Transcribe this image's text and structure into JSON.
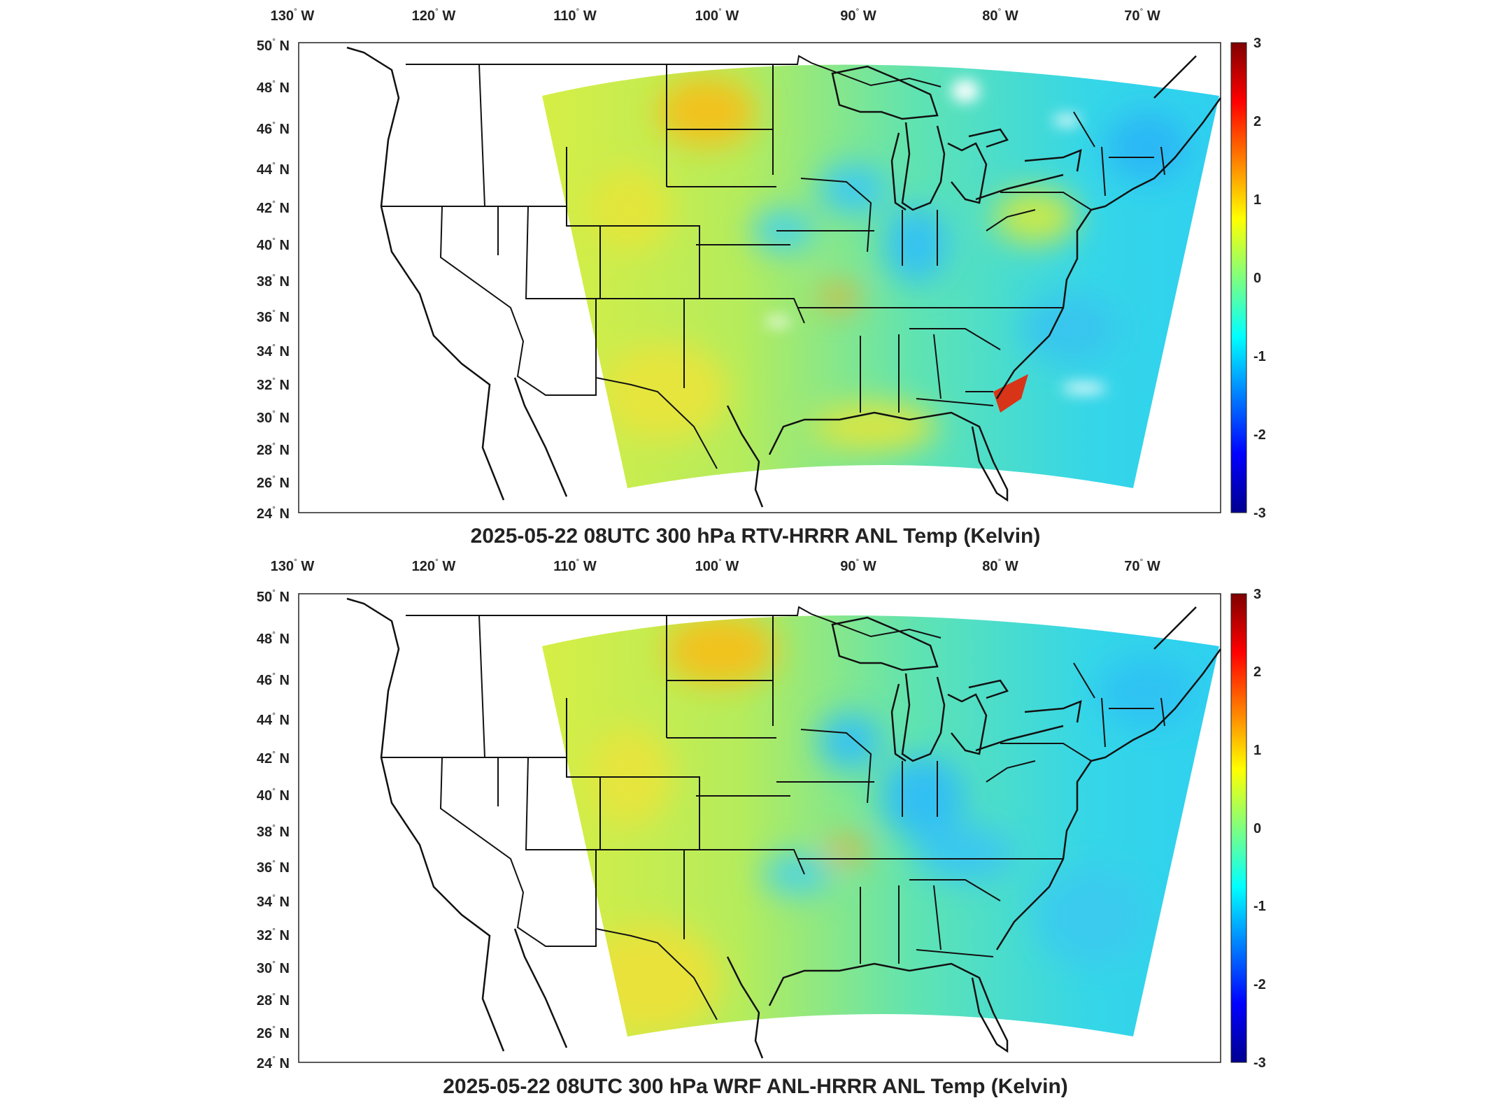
{
  "chart_data": [
    {
      "type": "heatmap",
      "title": "2025-05-22 08UTC 300 hPa RTV-HRRR ANL Temp (Kelvin)",
      "x_ticks": [
        {
          "deg": "130",
          "hemi": "W"
        },
        {
          "deg": "120",
          "hemi": "W"
        },
        {
          "deg": "110",
          "hemi": "W"
        },
        {
          "deg": "100",
          "hemi": "W"
        },
        {
          "deg": "90",
          "hemi": "W"
        },
        {
          "deg": "80",
          "hemi": "W"
        },
        {
          "deg": "70",
          "hemi": "W"
        }
      ],
      "y_ticks": [
        {
          "deg": "50",
          "hemi": "N"
        },
        {
          "deg": "48",
          "hemi": "N"
        },
        {
          "deg": "46",
          "hemi": "N"
        },
        {
          "deg": "44",
          "hemi": "N"
        },
        {
          "deg": "42",
          "hemi": "N"
        },
        {
          "deg": "40",
          "hemi": "N"
        },
        {
          "deg": "38",
          "hemi": "N"
        },
        {
          "deg": "36",
          "hemi": "N"
        },
        {
          "deg": "34",
          "hemi": "N"
        },
        {
          "deg": "32",
          "hemi": "N"
        },
        {
          "deg": "30",
          "hemi": "N"
        },
        {
          "deg": "28",
          "hemi": "N"
        },
        {
          "deg": "26",
          "hemi": "N"
        },
        {
          "deg": "24",
          "hemi": "N"
        }
      ],
      "colorbar": {
        "min": -3,
        "max": 3,
        "ticks": [
          "3",
          "2",
          "1",
          "0",
          "-1",
          "-2",
          "-3"
        ],
        "colormap": "jet"
      },
      "dominant_range": [
        -1,
        1
      ]
    },
    {
      "type": "heatmap",
      "title": "2025-05-22 08UTC 300 hPa WRF ANL-HRRR ANL Temp (Kelvin)",
      "x_ticks": [
        {
          "deg": "130",
          "hemi": "W"
        },
        {
          "deg": "120",
          "hemi": "W"
        },
        {
          "deg": "110",
          "hemi": "W"
        },
        {
          "deg": "100",
          "hemi": "W"
        },
        {
          "deg": "90",
          "hemi": "W"
        },
        {
          "deg": "80",
          "hemi": "W"
        },
        {
          "deg": "70",
          "hemi": "W"
        }
      ],
      "y_ticks": [
        {
          "deg": "50",
          "hemi": "N"
        },
        {
          "deg": "48",
          "hemi": "N"
        },
        {
          "deg": "46",
          "hemi": "N"
        },
        {
          "deg": "44",
          "hemi": "N"
        },
        {
          "deg": "42",
          "hemi": "N"
        },
        {
          "deg": "40",
          "hemi": "N"
        },
        {
          "deg": "38",
          "hemi": "N"
        },
        {
          "deg": "36",
          "hemi": "N"
        },
        {
          "deg": "34",
          "hemi": "N"
        },
        {
          "deg": "32",
          "hemi": "N"
        },
        {
          "deg": "30",
          "hemi": "N"
        },
        {
          "deg": "28",
          "hemi": "N"
        },
        {
          "deg": "26",
          "hemi": "N"
        },
        {
          "deg": "24",
          "hemi": "N"
        }
      ],
      "colorbar": {
        "min": -3,
        "max": 3,
        "ticks": [
          "3",
          "2",
          "1",
          "0",
          "-1",
          "-2",
          "-3"
        ],
        "colormap": "jet"
      },
      "dominant_range": [
        -1,
        1
      ]
    }
  ]
}
